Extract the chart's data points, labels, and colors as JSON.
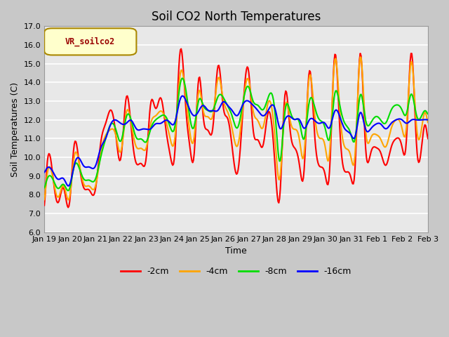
{
  "title": "Soil CO2 North Temperatures",
  "xlabel": "Time",
  "ylabel": "Soil Temperatures (C)",
  "legend_label": "VR_soilco2",
  "ylim": [
    6.0,
    17.0
  ],
  "yticks": [
    6.0,
    7.0,
    8.0,
    9.0,
    10.0,
    11.0,
    12.0,
    13.0,
    14.0,
    15.0,
    16.0,
    17.0
  ],
  "line_colors": {
    "-2cm": "#ff0000",
    "-4cm": "#ffa500",
    "-8cm": "#00dd00",
    "-16cm": "#0000ff"
  },
  "line_width": 1.5,
  "fig_bg_color": "#c8c8c8",
  "plot_bg_color": "#e8e8e8",
  "grid_color": "#ffffff",
  "xtick_labels": [
    "Jan 19",
    "Jan 20",
    "Jan 21",
    "Jan 22",
    "Jan 23",
    "Jan 24",
    "Jan 25",
    "Jan 26",
    "Jan 27",
    "Jan 28",
    "Jan 29",
    "Jan 30",
    "Jan 31",
    "Feb 1",
    "Feb 2",
    "Feb 3"
  ],
  "legend_box_color": "#ffffcc",
  "legend_box_edge": "#aa8800",
  "title_fontsize": 12,
  "axis_fontsize": 9,
  "tick_fontsize": 8
}
